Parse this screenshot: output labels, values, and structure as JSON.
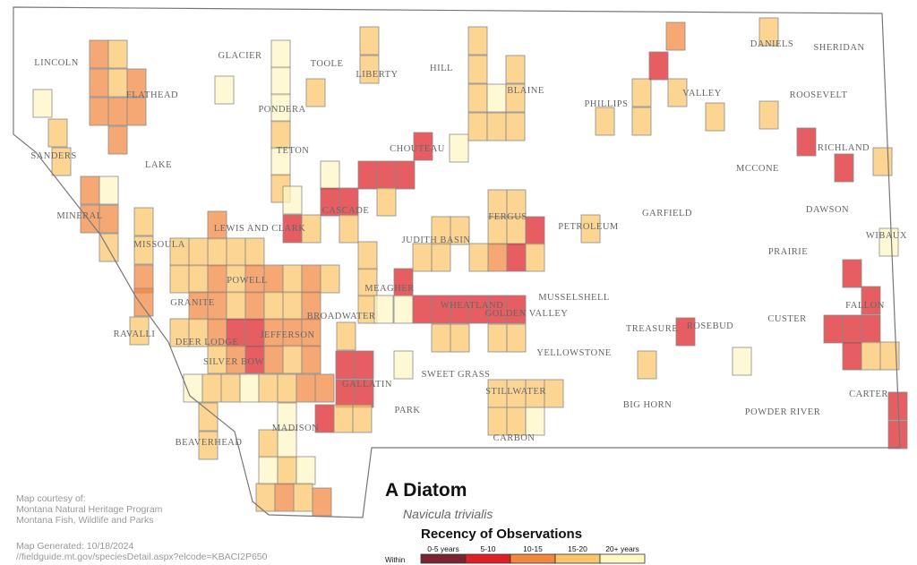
{
  "title": "A Diatom",
  "species": "Navicula trivialis",
  "legend": {
    "title": "Recency of Observations",
    "within": "Within",
    "items": [
      {
        "label": "0-5 years",
        "color": "#7b2431"
      },
      {
        "label": "5-10",
        "color": "#dc2026"
      },
      {
        "label": "10-15",
        "color": "#f2873e"
      },
      {
        "label": "15-20",
        "color": "#fbc56a"
      },
      {
        "label": "20+ years",
        "color": "#fdf7c3"
      }
    ]
  },
  "counties": [
    "LINCOLN",
    "FLATHEAD",
    "GLACIER",
    "TOOLE",
    "LIBERTY",
    "HILL",
    "BLAINE",
    "PHILLIPS",
    "VALLEY",
    "DANIELS",
    "SHERIDAN",
    "ROOSEVELT",
    "PONDERA",
    "TETON",
    "SANDERS",
    "LAKE",
    "CHOUTEAU",
    "RICHLAND",
    "MCCONE",
    "MINERAL",
    "CASCADE",
    "GARFIELD",
    "DAWSON",
    "LEWIS AND CLARK",
    "JUDITH BASIN",
    "FERGUS",
    "PETROLEUM",
    "WIBAUX",
    "MISSOULA",
    "PRAIRIE",
    "POWELL",
    "MEAGHER",
    "MUSSELSHELL",
    "GRANITE",
    "GOLDEN VALLEY",
    "WHEATLAND",
    "FALLON",
    "BROADWATER",
    "CUSTER",
    "RAVALLI",
    "DEER LODGE",
    "JEFFERSON",
    "TREASURE",
    "ROSEBUD",
    "YELLOWSTONE",
    "SILVER BOW",
    "SWEET GRASS",
    "STILLWATER",
    "CARTER",
    "GALLATIN",
    "BIG HORN",
    "PARK",
    "POWDER RIVER",
    "BEAVERHEAD",
    "MADISON",
    "CARBON"
  ],
  "credits": [
    "Map courtesy of:",
    "Montana Natural Heritage Program",
    "Montana Fish, Wildlife and Parks",
    "Map Generated: 10/18/2024",
    "//fieldguide.mt.gov/speciesDetail.aspx?elcode=KBACI2P650"
  ]
}
